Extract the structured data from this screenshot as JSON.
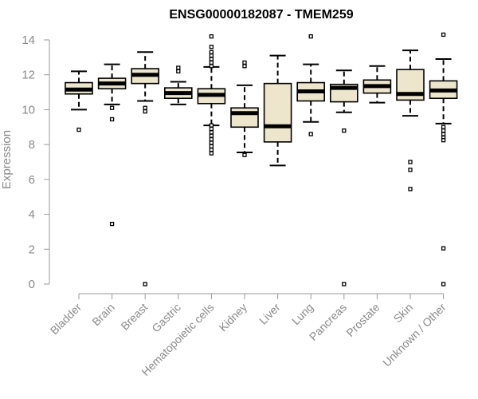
{
  "chart_data": {
    "type": "boxplot",
    "title": "ENSG00000182087 - TMEM259",
    "xlabel": "",
    "ylabel": "Expression",
    "ylim": [
      0,
      14
    ],
    "yticks": [
      0,
      2,
      4,
      6,
      8,
      10,
      12,
      14
    ],
    "colors": {
      "box_fill": "#ede6cc",
      "box_stroke": "#000000",
      "median": "#000000",
      "axis_text": "#8a8a8a"
    },
    "categories": [
      "Bladder",
      "Brain",
      "Breast",
      "Gastric",
      "Hematopoietic cells",
      "Kidney",
      "Liver",
      "Lung",
      "Pancreas",
      "Prostate",
      "Skin",
      "Unknown / Other"
    ],
    "boxes": [
      {
        "q1": 10.9,
        "median": 11.15,
        "q3": 11.55,
        "whisker_low": 10.0,
        "whisker_high": 12.2,
        "outliers": [
          8.85
        ]
      },
      {
        "q1": 11.2,
        "median": 11.5,
        "q3": 11.8,
        "whisker_low": 10.3,
        "whisker_high": 12.6,
        "outliers": [
          10.1,
          9.45,
          3.45
        ]
      },
      {
        "q1": 11.5,
        "median": 12.0,
        "q3": 12.35,
        "whisker_low": 10.5,
        "whisker_high": 13.3,
        "outliers": [
          10.1,
          9.9,
          0.0
        ]
      },
      {
        "q1": 10.65,
        "median": 10.95,
        "q3": 11.25,
        "whisker_low": 10.3,
        "whisker_high": 11.6,
        "outliers": [
          12.4,
          12.2
        ]
      },
      {
        "q1": 10.35,
        "median": 10.85,
        "q3": 11.2,
        "whisker_low": 9.1,
        "whisker_high": 12.45,
        "outliers": [
          14.2,
          13.6,
          13.3,
          13.1,
          12.9,
          12.7,
          12.5,
          9.1,
          8.9,
          8.7,
          8.5,
          8.3,
          8.1,
          7.9,
          7.7,
          7.5
        ]
      },
      {
        "q1": 9.0,
        "median": 9.8,
        "q3": 10.1,
        "whisker_low": 7.55,
        "whisker_high": 11.4,
        "outliers": [
          12.7,
          12.5,
          7.4
        ]
      },
      {
        "q1": 8.15,
        "median": 9.05,
        "q3": 11.5,
        "whisker_low": 6.8,
        "whisker_high": 13.1,
        "outliers": []
      },
      {
        "q1": 10.5,
        "median": 11.05,
        "q3": 11.55,
        "whisker_low": 9.3,
        "whisker_high": 12.6,
        "outliers": [
          14.2,
          8.6
        ]
      },
      {
        "q1": 10.45,
        "median": 11.25,
        "q3": 11.45,
        "whisker_low": 9.85,
        "whisker_high": 12.25,
        "outliers": [
          8.8,
          0.0
        ]
      },
      {
        "q1": 10.95,
        "median": 11.35,
        "q3": 11.7,
        "whisker_low": 10.4,
        "whisker_high": 12.5,
        "outliers": []
      },
      {
        "q1": 10.55,
        "median": 10.9,
        "q3": 12.3,
        "whisker_low": 9.65,
        "whisker_high": 13.4,
        "outliers": [
          7.0,
          6.55,
          5.45
        ]
      },
      {
        "q1": 10.65,
        "median": 11.1,
        "q3": 11.65,
        "whisker_low": 9.2,
        "whisker_high": 12.9,
        "outliers": [
          14.3,
          9.0,
          8.8,
          8.6,
          8.4,
          8.25,
          2.05,
          0.0
        ]
      }
    ]
  }
}
